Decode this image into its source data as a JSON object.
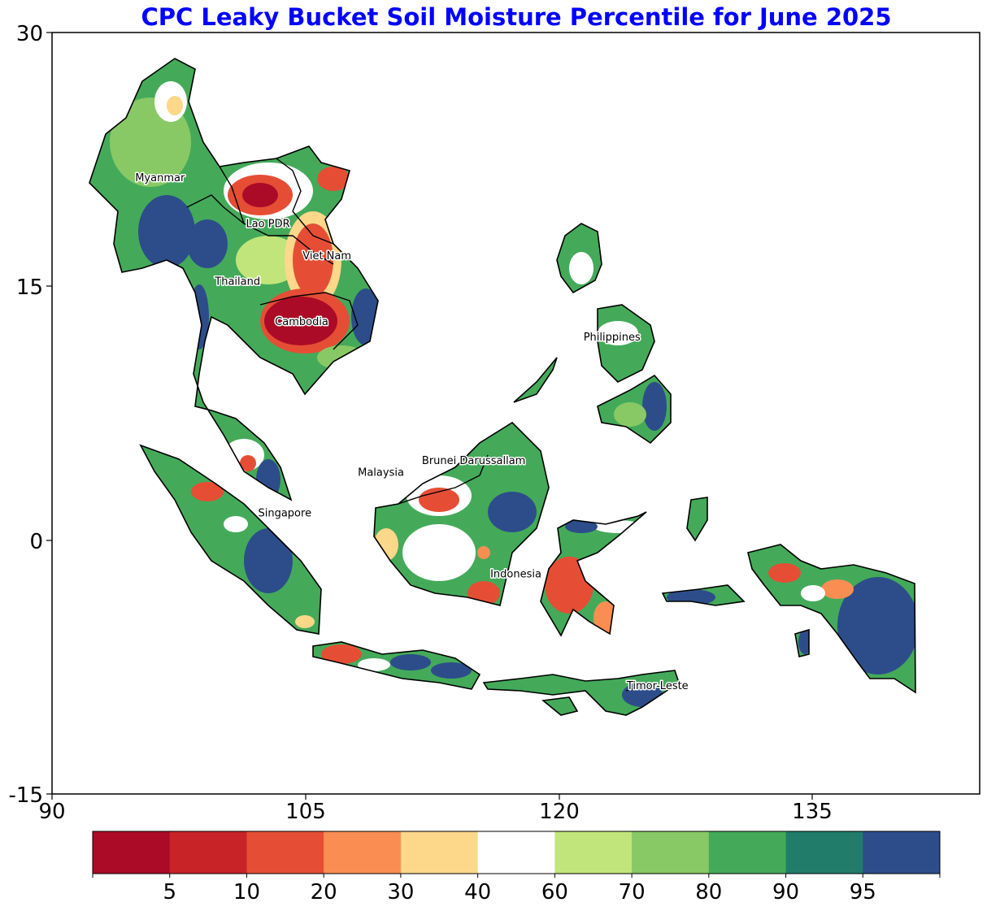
{
  "title": "CPC Leaky Bucket Soil Moisture Percentile for June 2025",
  "title_color": "#0000ff",
  "map": {
    "lon_range": [
      90,
      145
    ],
    "lat_range": [
      -15,
      30
    ],
    "x_ticks": [
      "90",
      "105",
      "120",
      "135"
    ],
    "y_ticks": [
      "30",
      "15",
      "0",
      "-15"
    ],
    "country_labels": [
      {
        "name": "Myanmar",
        "lon": 96.4,
        "lat": 21.2
      },
      {
        "name": "Lao PDR",
        "lon": 102.8,
        "lat": 18.5
      },
      {
        "name": "Viet Nam",
        "lon": 106.3,
        "lat": 16.6
      },
      {
        "name": "Thailand",
        "lon": 101.0,
        "lat": 15.1
      },
      {
        "name": "Cambodia",
        "lon": 104.8,
        "lat": 12.7
      },
      {
        "name": "Philippines",
        "lon": 123.2,
        "lat": 11.8
      },
      {
        "name": "Malaysia",
        "lon": 109.5,
        "lat": 3.8
      },
      {
        "name": "Brunei Darussallam",
        "lon": 115.0,
        "lat": 4.5
      },
      {
        "name": "Singapore",
        "lon": 103.8,
        "lat": 1.4
      },
      {
        "name": "Indonesia",
        "lon": 117.5,
        "lat": -2.2
      },
      {
        "name": "Timor-Leste",
        "lon": 125.9,
        "lat": -8.8
      }
    ]
  },
  "colorbar": {
    "colors": [
      "#ab0b27",
      "#c82428",
      "#e54e35",
      "#f98d52",
      "#fdd78a",
      "#ffffff",
      "#c1e57a",
      "#88c965",
      "#44aa5a",
      "#217d6a",
      "#2d4d8a"
    ],
    "tick_labels": [
      "5",
      "10",
      "20",
      "30",
      "40",
      "60",
      "70",
      "80",
      "90",
      "95"
    ]
  }
}
